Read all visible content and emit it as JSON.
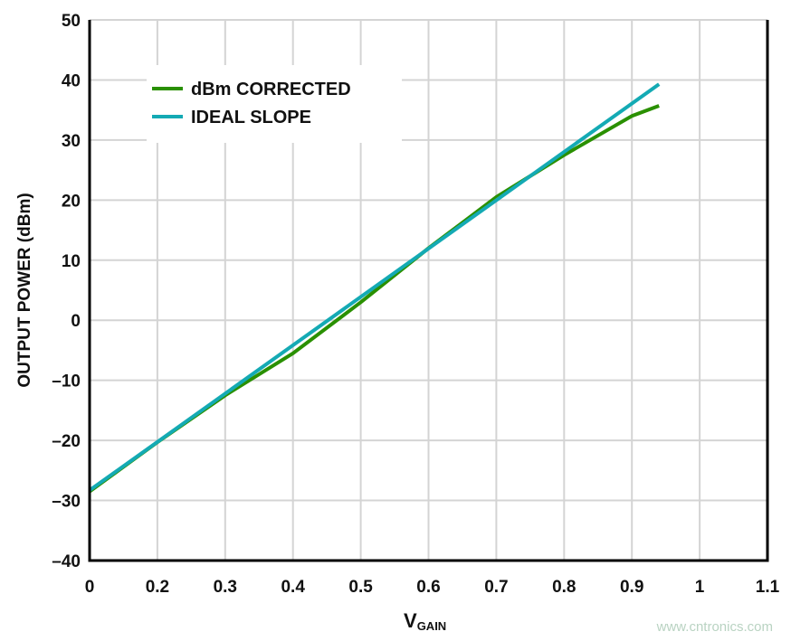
{
  "chart_data": {
    "type": "line",
    "xlabel": "V",
    "xlabel_subscript": "GAIN",
    "ylabel": "OUTPUT POWER (dBm)",
    "x_ticks": [
      0,
      0.2,
      0.3,
      0.4,
      0.5,
      0.6,
      0.7,
      0.8,
      0.9,
      1,
      1.1
    ],
    "x_tick_labels": [
      "0",
      "0.2",
      "0.3",
      "0.4",
      "0.5",
      "0.6",
      "0.7",
      "0.8",
      "0.9",
      "1",
      "1.1"
    ],
    "y_ticks": [
      50,
      40,
      30,
      20,
      10,
      0,
      -10,
      -20,
      -30,
      -40
    ],
    "y_tick_labels": [
      "50",
      "40",
      "30",
      "20",
      "10",
      "0",
      "–10",
      "–20",
      "–30",
      "–40"
    ],
    "ylim": [
      -40,
      50
    ],
    "grid": true,
    "legend_placement": "top-left",
    "series": [
      {
        "name": "dBm CORRECTED",
        "color": "#2a9000",
        "x": [
          0,
          0.2,
          0.3,
          0.4,
          0.5,
          0.6,
          0.7,
          0.8,
          0.9,
          0.94
        ],
        "y": [
          -28.5,
          -20.3,
          -12.5,
          -5.5,
          3,
          12,
          20.5,
          27.5,
          34,
          35.7
        ]
      },
      {
        "name": "IDEAL SLOPE",
        "color": "#14aab4",
        "x": [
          0,
          0.94
        ],
        "y": [
          -28.3,
          39.3
        ]
      }
    ]
  },
  "watermark": "www.cntronics.com"
}
